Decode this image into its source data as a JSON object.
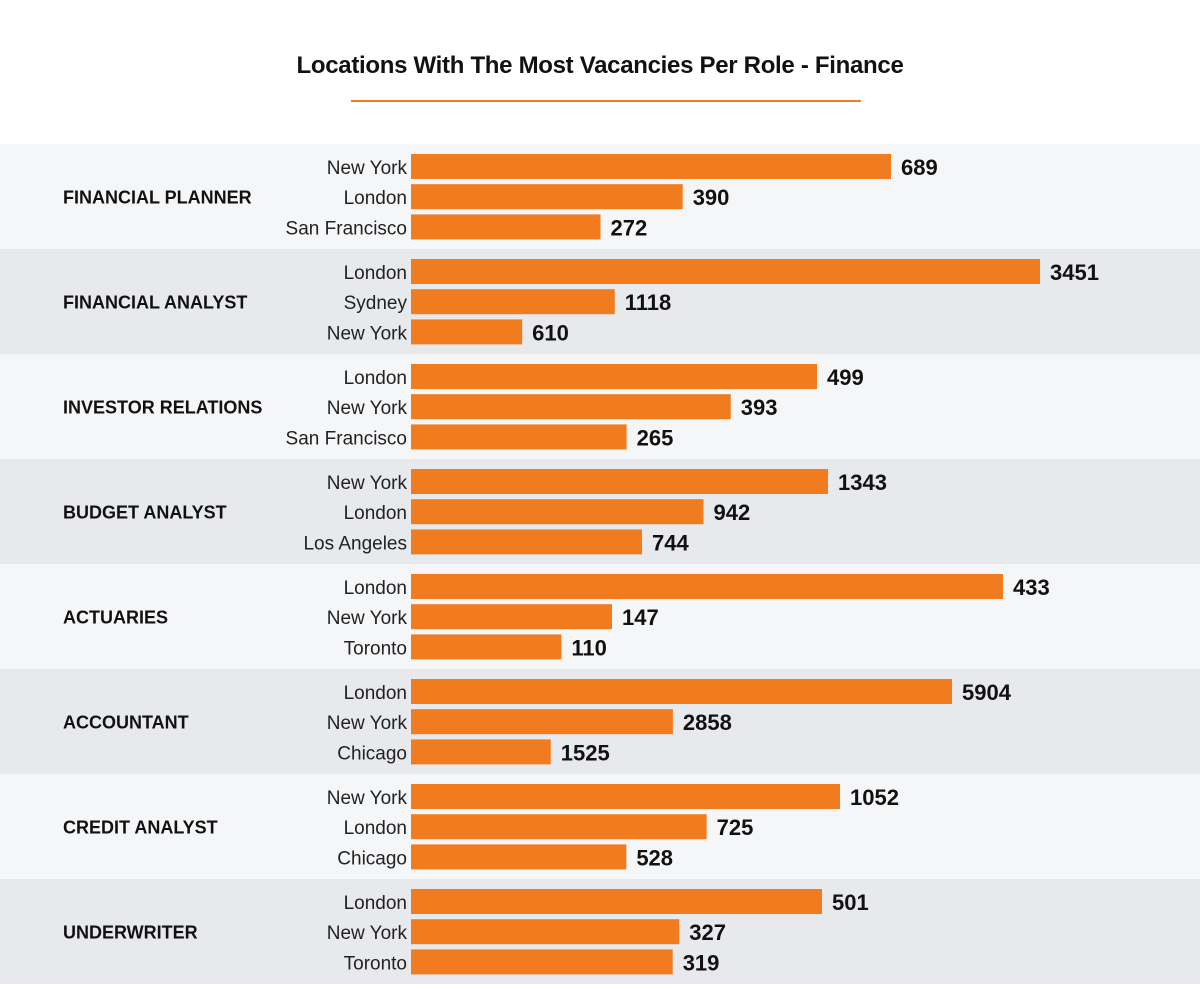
{
  "chart_data": {
    "type": "bar",
    "orientation": "horizontal",
    "title": "Locations With The Most Vacancies Per Role - Finance",
    "bar_color": "#f07c1f",
    "band_colors": [
      "#f5f6f8",
      "#e8e9ec"
    ],
    "groups": [
      {
        "role": "FINANCIAL PLANNER",
        "bars": [
          {
            "city": "New York",
            "value": 689
          },
          {
            "city": "London",
            "value": 390
          },
          {
            "city": "San Francisco",
            "value": 272
          }
        ]
      },
      {
        "role": "FINANCIAL ANALYST",
        "bars": [
          {
            "city": "London",
            "value": 3451
          },
          {
            "city": "Sydney",
            "value": 1118
          },
          {
            "city": "New York",
            "value": 610
          }
        ]
      },
      {
        "role": "INVESTOR RELATIONS",
        "bars": [
          {
            "city": "London",
            "value": 499
          },
          {
            "city": "New York",
            "value": 393
          },
          {
            "city": "San Francisco",
            "value": 265
          }
        ]
      },
      {
        "role": "BUDGET ANALYST",
        "bars": [
          {
            "city": "New York",
            "value": 1343
          },
          {
            "city": "London",
            "value": 942
          },
          {
            "city": "Los Angeles",
            "value": 744
          }
        ]
      },
      {
        "role": "ACTUARIES",
        "bars": [
          {
            "city": "London",
            "value": 433
          },
          {
            "city": "New York",
            "value": 147
          },
          {
            "city": "Toronto",
            "value": 110
          }
        ]
      },
      {
        "role": "ACCOUNTANT",
        "bars": [
          {
            "city": "London",
            "value": 5904
          },
          {
            "city": "New York",
            "value": 2858
          },
          {
            "city": "Chicago",
            "value": 1525
          }
        ]
      },
      {
        "role": "CREDIT ANALYST",
        "bars": [
          {
            "city": "New York",
            "value": 1052
          },
          {
            "city": "London",
            "value": 725
          },
          {
            "city": "Chicago",
            "value": 528
          }
        ]
      },
      {
        "role": "UNDERWRITER",
        "bars": [
          {
            "city": "London",
            "value": 501
          },
          {
            "city": "New York",
            "value": 327
          },
          {
            "city": "Toronto",
            "value": 319
          }
        ]
      }
    ]
  }
}
